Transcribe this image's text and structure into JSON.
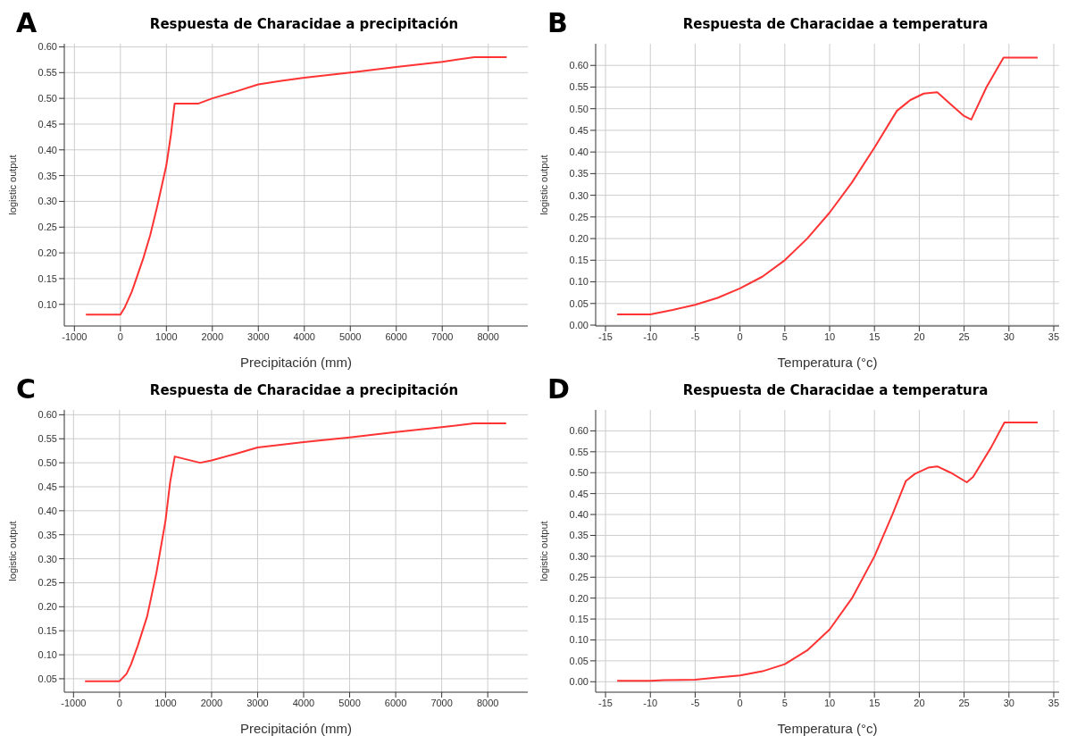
{
  "chart_data": [
    {
      "type": "line",
      "title": "Respuesta de Characidae a precipitación",
      "xlabel": "Precipitación (mm)",
      "ylabel": "logistic output",
      "annotations": [
        "A"
      ],
      "grid": true,
      "marker": "none",
      "line_style": "solid",
      "x": [
        -750,
        0,
        100,
        250,
        500,
        650,
        800,
        1000,
        1100,
        1180,
        1700,
        2000,
        2500,
        3000,
        3500,
        4000,
        5000,
        6000,
        7000,
        7700,
        8400
      ],
      "series": [
        {
          "color": "#ff3333",
          "values": [
            0.08,
            0.08,
            0.095,
            0.125,
            0.19,
            0.235,
            0.29,
            0.37,
            0.43,
            0.49,
            0.49,
            0.5,
            0.513,
            0.527,
            0.534,
            0.54,
            0.55,
            0.561,
            0.571,
            0.58,
            0.58
          ]
        }
      ],
      "xlim": [
        -1220,
        8860
      ],
      "xticks": [
        -1000,
        0,
        1000,
        2000,
        3000,
        4000,
        5000,
        6000,
        7000,
        8000
      ],
      "ylim": [
        0.058,
        0.606
      ],
      "yticks": [
        {
          "value": 0.1,
          "label": "0.10"
        },
        {
          "value": 0.15,
          "label": "0.15"
        },
        {
          "value": 0.2,
          "label": "0.20"
        },
        {
          "value": 0.25,
          "label": "0.25"
        },
        {
          "value": 0.3,
          "label": "0.30"
        },
        {
          "value": 0.35,
          "label": "0.35"
        },
        {
          "value": 0.4,
          "label": "0.40"
        },
        {
          "value": 0.45,
          "label": "0.45"
        },
        {
          "value": 0.5,
          "label": "0.50"
        },
        {
          "value": 0.55,
          "label": "0.55"
        },
        {
          "value": 0.6,
          "label": "0.60"
        }
      ]
    },
    {
      "type": "line",
      "title": "Respuesta de Characidae a temperatura",
      "xlabel": "Temperatura (°c)",
      "ylabel": "logistic output",
      "annotations": [
        "B"
      ],
      "grid": true,
      "marker": "none",
      "line_style": "solid",
      "x": [
        -13.7,
        -10,
        -7.5,
        -5,
        -2.5,
        0,
        2.5,
        5,
        7.5,
        10,
        12.5,
        15,
        17.5,
        19,
        20.5,
        22,
        23.5,
        25,
        25.8,
        27.5,
        29.4,
        33.2
      ],
      "series": [
        {
          "color": "#ff3333",
          "values": [
            0.025,
            0.025,
            0.035,
            0.047,
            0.063,
            0.085,
            0.112,
            0.15,
            0.2,
            0.26,
            0.33,
            0.41,
            0.495,
            0.52,
            0.535,
            0.538,
            0.51,
            0.483,
            0.475,
            0.55,
            0.618,
            0.618
          ]
        }
      ],
      "xlim": [
        -16.1,
        35.6
      ],
      "xticks": [
        -15,
        -10,
        -5,
        0,
        5,
        10,
        15,
        20,
        25,
        30,
        35
      ],
      "ylim": [
        -0.002,
        0.65
      ],
      "yticks": [
        {
          "value": 0,
          "label": "0.00"
        },
        {
          "value": 0.05,
          "label": "0.05"
        },
        {
          "value": 0.1,
          "label": "0.10"
        },
        {
          "value": 0.15,
          "label": "0.15"
        },
        {
          "value": 0.2,
          "label": "0.20"
        },
        {
          "value": 0.25,
          "label": "0.25"
        },
        {
          "value": 0.3,
          "label": "0.30"
        },
        {
          "value": 0.35,
          "label": "0.35"
        },
        {
          "value": 0.4,
          "label": "0.40"
        },
        {
          "value": 0.45,
          "label": "0.45"
        },
        {
          "value": 0.5,
          "label": "0.50"
        },
        {
          "value": 0.55,
          "label": "0.55"
        },
        {
          "value": 0.6,
          "label": "0.60"
        }
      ]
    },
    {
      "type": "line",
      "title": "Respuesta de Characidae a precipitación",
      "xlabel": "Precipitación (mm)",
      "ylabel": "logistic output",
      "annotations": [
        "C"
      ],
      "grid": true,
      "marker": "none",
      "line_style": "solid",
      "x": [
        -750,
        0,
        150,
        250,
        400,
        600,
        800,
        1000,
        1100,
        1200,
        1750,
        2000,
        2500,
        3000,
        4000,
        5000,
        6000,
        7000,
        7700,
        8400
      ],
      "series": [
        {
          "color": "#ff3333",
          "values": [
            0.045,
            0.045,
            0.06,
            0.08,
            0.12,
            0.18,
            0.27,
            0.38,
            0.46,
            0.513,
            0.5,
            0.505,
            0.518,
            0.532,
            0.543,
            0.553,
            0.564,
            0.574,
            0.582,
            0.582
          ]
        }
      ],
      "xlim": [
        -1200,
        8870
      ],
      "xticks": [
        -1000,
        0,
        1000,
        2000,
        3000,
        4000,
        5000,
        6000,
        7000,
        8000
      ],
      "ylim": [
        0.022,
        0.61
      ],
      "yticks": [
        {
          "value": 0.05,
          "label": "0.05"
        },
        {
          "value": 0.1,
          "label": "0.10"
        },
        {
          "value": 0.15,
          "label": "0.15"
        },
        {
          "value": 0.2,
          "label": "0.20"
        },
        {
          "value": 0.25,
          "label": "0.25"
        },
        {
          "value": 0.3,
          "label": "0.30"
        },
        {
          "value": 0.35,
          "label": "0.35"
        },
        {
          "value": 0.4,
          "label": "0.40"
        },
        {
          "value": 0.45,
          "label": "0.45"
        },
        {
          "value": 0.5,
          "label": "0.50"
        },
        {
          "value": 0.55,
          "label": "0.55"
        },
        {
          "value": 0.6,
          "label": "0.60"
        }
      ]
    },
    {
      "type": "line",
      "title": "Respuesta de Characidae a temperatura",
      "xlabel": "Temperatura (°c)",
      "ylabel": "logistic output",
      "annotations": [
        "D"
      ],
      "grid": true,
      "marker": "none",
      "line_style": "solid",
      "x": [
        -13.7,
        -10,
        -8.5,
        -5,
        -2.5,
        0,
        2.5,
        5,
        7.5,
        10,
        12.5,
        15,
        17,
        18.5,
        19.5,
        21,
        22,
        23.5,
        25.3,
        26,
        28,
        29.5,
        33.2
      ],
      "series": [
        {
          "color": "#ff3333",
          "values": [
            0.002,
            0.002,
            0.004,
            0.005,
            0.01,
            0.015,
            0.025,
            0.042,
            0.075,
            0.125,
            0.2,
            0.3,
            0.4,
            0.48,
            0.497,
            0.512,
            0.515,
            0.5,
            0.477,
            0.49,
            0.56,
            0.62,
            0.62
          ]
        }
      ],
      "xlim": [
        -16.1,
        35.6
      ],
      "xticks": [
        -15,
        -10,
        -5,
        0,
        5,
        10,
        15,
        20,
        25,
        30,
        35
      ],
      "ylim": [
        -0.025,
        0.65
      ],
      "yticks": [
        {
          "value": 0,
          "label": "0.00"
        },
        {
          "value": 0.05,
          "label": "0.05"
        },
        {
          "value": 0.1,
          "label": "0.10"
        },
        {
          "value": 0.15,
          "label": "0.15"
        },
        {
          "value": 0.2,
          "label": "0.20"
        },
        {
          "value": 0.25,
          "label": "0.25"
        },
        {
          "value": 0.3,
          "label": "0.30"
        },
        {
          "value": 0.35,
          "label": "0.35"
        },
        {
          "value": 0.4,
          "label": "0.40"
        },
        {
          "value": 0.45,
          "label": "0.45"
        },
        {
          "value": 0.5,
          "label": "0.50"
        },
        {
          "value": 0.55,
          "label": "0.55"
        },
        {
          "value": 0.6,
          "label": "0.60"
        }
      ]
    }
  ]
}
